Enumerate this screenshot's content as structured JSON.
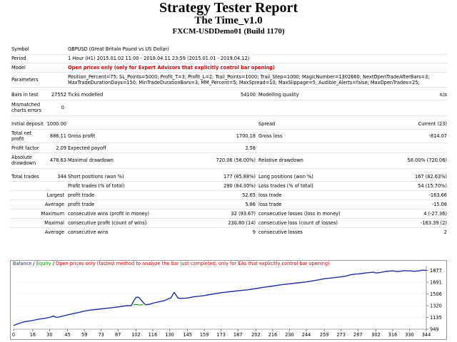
{
  "header": {
    "title": "Strategy Tester Report",
    "ea_name": "The Time_v1.0",
    "server": "FXCM-USDDemo01 (Build 1170)"
  },
  "info": {
    "symbol_label": "Symbol",
    "symbol_value": "GBPUSD (Great Britain Pound vs US Dollar)",
    "period_label": "Period",
    "period_value": "1 Hour (H1) 2015.01.02 11:00 - 2019.04.11 23:59 (2015.01.01 - 2019.04.12)",
    "model_label": "Model",
    "model_value": "Open prices only (only for Expert Advisors that explicitly control bar opening)",
    "parameters_label": "Parameters",
    "parameters_line1": "Position_Percent=75; SL_Points=5000; Profit_T=3; Profit_L=2; Trail_Points=1000; Trail_Step=1000; MagicNumber=1302660; NextOpenTradeAfterBars=3;",
    "parameters_line2": "MaxTradeDurationDays=150; MinTradeDurationBars=3; MM_Percent=5; MaxSpread=10; MaxSlippage=5; Audible_Alerts=false; MaxOpenTrades=25;",
    "bars_label": "Bars in test",
    "bars_value": "27552",
    "ticks_label": "Ticks modelled",
    "ticks_value": "54100",
    "quality_label": "Modelling quality",
    "quality_value": "n/a",
    "mismatch_label_1": "Mismatched",
    "mismatch_label_2": "charts errors",
    "mismatch_value": "0"
  },
  "stats": {
    "initial_deposit_label": "Initial deposit",
    "initial_deposit_value": "1000.00",
    "spread_label": "Spread",
    "spread_value": "Current (23)",
    "net_profit_label_1": "Total net",
    "net_profit_label_2": "profit",
    "net_profit_value": "886.11",
    "gross_profit_label": "Gross profit",
    "gross_profit_value": "1700.18",
    "gross_loss_label": "Gross loss",
    "gross_loss_value": "-814.07",
    "profit_factor_label": "Profit factor",
    "profit_factor_value": "2.09",
    "expected_payoff_label": "Expected payoff",
    "expected_payoff_value": "2.58",
    "abs_dd_label_1": "Absolute",
    "abs_dd_label_2": "drawdown",
    "abs_dd_value": "478.63",
    "max_dd_label": "Maximal drawdown",
    "max_dd_value": "720.06 (58.00%)",
    "rel_dd_label": "Relative drawdown",
    "rel_dd_value": "58.00% (720.06)",
    "total_trades_label": "Total trades",
    "total_trades_value": "344",
    "short_label": "Short positions (won %)",
    "short_value": "177 (85.88%)",
    "long_label": "Long positions (won %)",
    "long_value": "167 (82.63%)",
    "profit_trades_label": "Profit trades (% of total)",
    "profit_trades_value": "290 (84.30%)",
    "loss_trades_label": "Loss trades (% of total)",
    "loss_trades_value": "54 (15.70%)",
    "largest_label": "Largest",
    "largest_profit_label": "profit trade",
    "largest_profit_value": "52.65",
    "largest_loss_label": "loss trade",
    "largest_loss_value": "-163.66",
    "average_label": "Average",
    "average_profit_label": "profit trade",
    "average_profit_value": "5.86",
    "average_loss_label": "loss trade",
    "average_loss_value": "-15.08",
    "maximum_label": "Maximum",
    "max_cons_wins_label": "consecutive wins (profit in money)",
    "max_cons_wins_value": "32 (93.67)",
    "max_cons_losses_label": "consecutive losses (loss in money)",
    "max_cons_losses_value": "4 (-27.36)",
    "maximal_label": "Maximal",
    "maximal_profit_label": "consecutive profit (count of wins)",
    "maximal_profit_value": "230.80 (14)",
    "maximal_loss_label": "consecutive loss (count of losses)",
    "maximal_loss_value": "-163.39 (2)",
    "average2_label": "Average",
    "avg_cons_wins_label": "consecutive wins",
    "avg_cons_wins_value": "9",
    "avg_cons_losses_label": "consecutive losses",
    "avg_cons_losses_value": "2"
  },
  "legend": {
    "balance": "Balance",
    "sep1": " / ",
    "equity": "Equity",
    "sep2": " / ",
    "note": "Open prices only (fastest method to analyze the bar just completed, only for EAs that explicitly control bar opening)"
  },
  "colors": {
    "balance": "#1f2e9e",
    "equity": "#00a000",
    "note": "#d40000"
  },
  "chart_data": {
    "type": "line",
    "x_ticks": [
      "0",
      "16",
      "30",
      "45",
      "59",
      "73",
      "87",
      "102",
      "116",
      "130",
      "145",
      "159",
      "173",
      "187",
      "202",
      "216",
      "230",
      "244",
      "259",
      "273",
      "287",
      "302",
      "316",
      "330",
      "344"
    ],
    "y_ticks": [
      "1877",
      "1691",
      "1506",
      "1320",
      "1135",
      "949"
    ],
    "xlim": [
      0,
      344
    ],
    "ylim": [
      949,
      1905
    ],
    "series": [
      {
        "name": "Balance",
        "x": [
          0,
          3,
          6,
          10,
          14,
          18,
          22,
          26,
          30,
          33,
          36,
          40,
          45,
          50,
          55,
          59,
          64,
          68,
          73,
          78,
          83,
          87,
          92,
          95,
          98,
          99,
          100,
          102,
          104,
          105,
          108,
          110,
          114,
          116,
          120,
          123,
          125,
          127,
          129,
          131,
          132,
          133,
          134,
          135,
          137,
          140,
          145,
          150,
          155,
          159,
          165,
          173,
          180,
          187,
          195,
          202,
          210,
          216,
          223,
          230,
          237,
          244,
          252,
          259,
          266,
          273,
          278,
          280,
          282,
          285,
          287,
          293,
          300,
          302,
          306,
          310,
          316,
          320,
          325,
          330,
          334,
          338,
          341,
          344
        ],
        "y": [
          1005,
          1030,
          1050,
          1070,
          1080,
          1095,
          1110,
          1120,
          1135,
          1155,
          1135,
          1150,
          1175,
          1195,
          1215,
          1235,
          1250,
          1258,
          1270,
          1280,
          1290,
          1300,
          1315,
          1320,
          1320,
          1350,
          1390,
          1450,
          1455,
          1440,
          1370,
          1335,
          1345,
          1360,
          1375,
          1390,
          1395,
          1410,
          1430,
          1440,
          1470,
          1505,
          1530,
          1500,
          1440,
          1435,
          1440,
          1460,
          1470,
          1480,
          1500,
          1525,
          1540,
          1555,
          1570,
          1590,
          1615,
          1630,
          1650,
          1665,
          1680,
          1695,
          1720,
          1745,
          1760,
          1775,
          1790,
          1805,
          1810,
          1820,
          1820,
          1835,
          1850,
          1835,
          1845,
          1860,
          1870,
          1858,
          1870,
          1870,
          1862,
          1870,
          1880,
          1877
        ]
      },
      {
        "name": "Equity",
        "x": [
          100,
          102,
          104,
          105,
          108
        ],
        "y": [
          1335,
          1340,
          1335,
          1330,
          1335
        ]
      }
    ]
  }
}
